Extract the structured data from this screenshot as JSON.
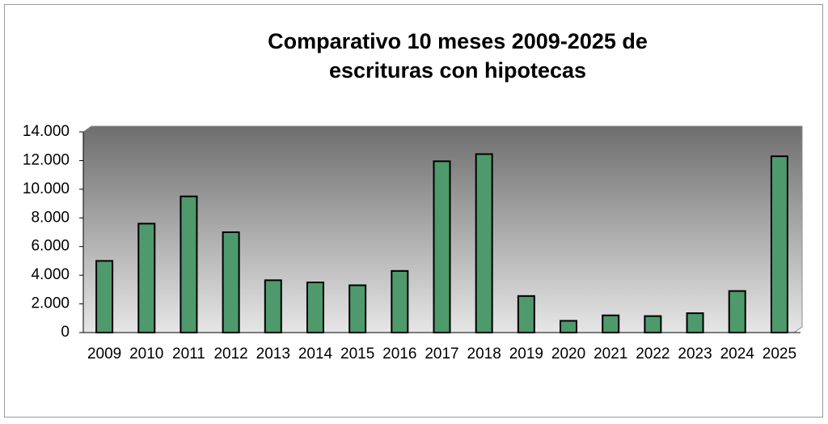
{
  "chart_data": {
    "type": "bar",
    "title": [
      "Comparativo 10 meses 2009-2025 de",
      "escrituras con hipotecas"
    ],
    "categories": [
      "2009",
      "2010",
      "2011",
      "2012",
      "2013",
      "2014",
      "2015",
      "2016",
      "2017",
      "2018",
      "2019",
      "2020",
      "2021",
      "2022",
      "2023",
      "2024",
      "2025"
    ],
    "values": [
      5000,
      7600,
      9500,
      7000,
      3650,
      3500,
      3300,
      4300,
      11950,
      12450,
      2550,
      820,
      1200,
      1150,
      1350,
      2900,
      12300
    ],
    "color": "#4e9a6c",
    "ylim": [
      0,
      14000
    ],
    "yticks": [
      0,
      {
        "value": 2000,
        "label": "2.000"
      },
      {
        "value": 4000,
        "label": "4.000"
      },
      {
        "value": 6000,
        "label": "6.000"
      },
      {
        "value": 8000,
        "label": "8.000"
      },
      {
        "value": 10000,
        "label": "10.000"
      },
      {
        "value": 12000,
        "label": "12.000"
      },
      {
        "value": 14000,
        "label": "14.000"
      }
    ],
    "grid": false
  }
}
